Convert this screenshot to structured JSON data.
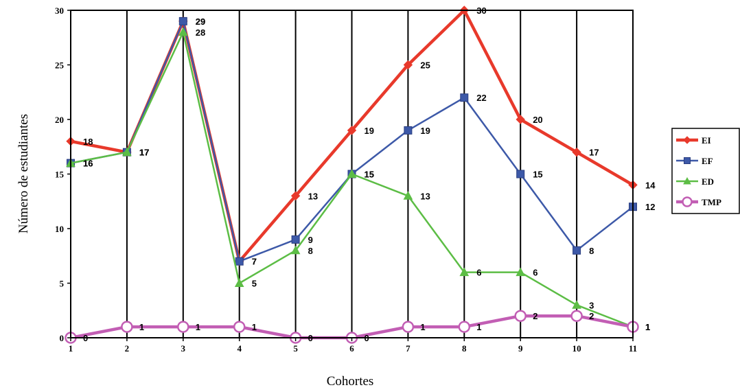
{
  "chart_data": {
    "type": "line",
    "xlabel": "Cohortes",
    "ylabel": "Número de estudiantes",
    "x": [
      1,
      2,
      3,
      4,
      5,
      6,
      7,
      8,
      9,
      10,
      11
    ],
    "ylim": [
      0,
      30
    ],
    "yticks": [
      0,
      5,
      10,
      15,
      20,
      25,
      30
    ],
    "grid": "vertical",
    "legend_position": "right",
    "series": [
      {
        "name": "EI",
        "color": "#e8392b",
        "marker": "diamond",
        "values": [
          18,
          17,
          29,
          7,
          13,
          19,
          25,
          30,
          20,
          17,
          14
        ]
      },
      {
        "name": "EF",
        "color": "#3d59a8",
        "marker": "square",
        "values": [
          16,
          17,
          29,
          7,
          9,
          15,
          19,
          22,
          15,
          8,
          12
        ]
      },
      {
        "name": "ED",
        "color": "#5cbd45",
        "marker": "triangle",
        "values": [
          16,
          17,
          28,
          5,
          8,
          15,
          13,
          6,
          6,
          3,
          1
        ]
      },
      {
        "name": "TMP",
        "color": "#c25eb4",
        "marker": "circle",
        "values": [
          0,
          1,
          1,
          1,
          0,
          0,
          1,
          1,
          2,
          2,
          1
        ]
      }
    ]
  }
}
